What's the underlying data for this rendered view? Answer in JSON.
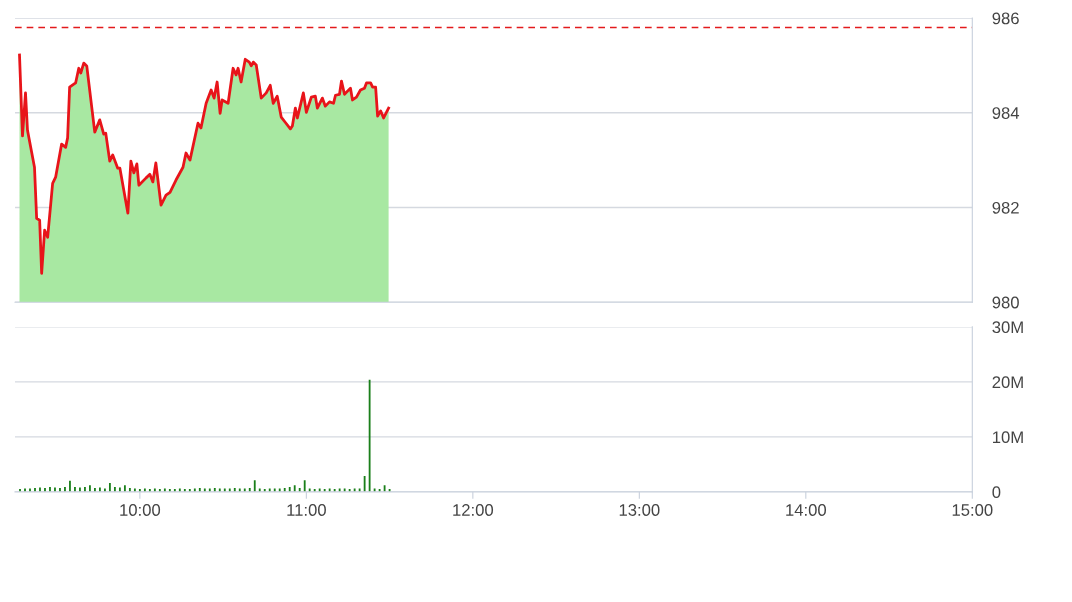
{
  "chart_data": [
    {
      "type": "area",
      "xlim": [
        9.25,
        15
      ],
      "ylim": [
        980,
        986
      ],
      "yticks": [
        980,
        982,
        984,
        986
      ],
      "tick_labels": "y",
      "grid": "y",
      "xticks": [
        {
          "value": 10,
          "label": null
        },
        {
          "value": 11,
          "label": null
        },
        {
          "value": 12,
          "label": null
        },
        {
          "value": 13,
          "label": null
        },
        {
          "value": 14,
          "label": null
        },
        {
          "value": 15,
          "label": null
        }
      ],
      "ref_lines": [
        {
          "axis": "y",
          "value": 985.8,
          "color": "#e31a1c",
          "line_style": "dashed"
        }
      ],
      "series": [
        {
          "type": "area",
          "color": "#a8e8a2",
          "x": [
            9.277,
            9.295,
            9.313,
            9.325,
            9.367,
            9.38,
            9.398,
            9.41,
            9.428,
            9.446,
            9.476,
            9.494,
            9.53,
            9.554,
            9.566,
            9.578,
            9.614,
            9.633,
            9.645,
            9.663,
            9.681,
            9.729,
            9.759,
            9.783,
            9.795,
            9.819,
            9.837,
            9.867,
            9.88,
            9.928,
            9.946,
            9.964,
            9.982,
            9.994,
            10.036,
            10.06,
            10.078,
            10.096,
            10.127,
            10.157,
            10.181,
            10.217,
            10.259,
            10.277,
            10.301,
            10.349,
            10.367,
            10.398,
            10.428,
            10.446,
            10.464,
            10.482,
            10.494,
            10.53,
            10.56,
            10.578,
            10.59,
            10.608,
            10.633,
            10.657,
            10.669,
            10.681,
            10.699,
            10.729,
            10.759,
            10.783,
            10.801,
            10.825,
            10.849,
            10.873,
            10.904,
            10.916,
            10.934,
            10.946,
            10.982,
            11.0,
            11.03,
            11.054,
            11.066,
            11.096,
            11.114,
            11.139,
            11.163,
            11.175,
            11.199,
            11.211,
            11.229,
            11.265,
            11.277,
            11.301,
            11.325,
            11.349,
            11.361,
            11.386,
            11.398,
            11.416,
            11.428,
            11.446,
            11.464,
            11.494
          ],
          "values": [
            985.22,
            983.51,
            984.42,
            983.63,
            982.85,
            981.77,
            981.73,
            980.61,
            981.52,
            981.37,
            982.51,
            982.64,
            983.34,
            983.27,
            983.47,
            984.54,
            984.63,
            984.94,
            984.84,
            985.05,
            984.99,
            983.59,
            983.85,
            983.55,
            983.57,
            982.98,
            983.11,
            982.83,
            982.83,
            981.88,
            982.98,
            982.73,
            982.92,
            982.47,
            982.62,
            982.7,
            982.54,
            982.94,
            982.05,
            982.26,
            982.32,
            982.58,
            982.85,
            983.15,
            983.0,
            983.78,
            983.68,
            984.2,
            984.48,
            984.31,
            984.65,
            983.99,
            984.27,
            984.2,
            984.94,
            984.8,
            984.94,
            984.65,
            985.13,
            985.07,
            984.99,
            985.07,
            985.01,
            984.31,
            984.42,
            984.58,
            984.2,
            984.35,
            983.91,
            983.8,
            983.66,
            983.72,
            984.1,
            983.89,
            984.42,
            984.01,
            984.33,
            984.35,
            984.1,
            984.31,
            984.14,
            984.23,
            984.2,
            984.37,
            984.39,
            984.67,
            984.39,
            984.52,
            984.27,
            984.33,
            984.48,
            984.52,
            984.63,
            984.63,
            984.54,
            984.54,
            983.93,
            984.04,
            983.89,
            984.1
          ]
        },
        {
          "type": "line",
          "color": "#e8141a",
          "x": [
            9.277,
            9.295,
            9.313,
            9.325,
            9.367,
            9.38,
            9.398,
            9.41,
            9.428,
            9.446,
            9.476,
            9.494,
            9.53,
            9.554,
            9.566,
            9.578,
            9.614,
            9.633,
            9.645,
            9.663,
            9.681,
            9.729,
            9.759,
            9.783,
            9.795,
            9.819,
            9.837,
            9.867,
            9.88,
            9.928,
            9.946,
            9.964,
            9.982,
            9.994,
            10.036,
            10.06,
            10.078,
            10.096,
            10.127,
            10.157,
            10.181,
            10.217,
            10.259,
            10.277,
            10.301,
            10.349,
            10.367,
            10.398,
            10.428,
            10.446,
            10.464,
            10.482,
            10.494,
            10.53,
            10.56,
            10.578,
            10.59,
            10.608,
            10.633,
            10.657,
            10.669,
            10.681,
            10.699,
            10.729,
            10.759,
            10.783,
            10.801,
            10.825,
            10.849,
            10.873,
            10.904,
            10.916,
            10.934,
            10.946,
            10.982,
            11.0,
            11.03,
            11.054,
            11.066,
            11.096,
            11.114,
            11.139,
            11.163,
            11.175,
            11.199,
            11.211,
            11.229,
            11.265,
            11.277,
            11.301,
            11.325,
            11.349,
            11.361,
            11.386,
            11.398,
            11.416,
            11.428,
            11.446,
            11.464,
            11.494
          ],
          "values": [
            985.22,
            983.51,
            984.42,
            983.63,
            982.85,
            981.77,
            981.73,
            980.61,
            981.52,
            981.37,
            982.51,
            982.64,
            983.34,
            983.27,
            983.47,
            984.54,
            984.63,
            984.94,
            984.84,
            985.05,
            984.99,
            983.59,
            983.85,
            983.55,
            983.57,
            982.98,
            983.11,
            982.83,
            982.83,
            981.88,
            982.98,
            982.73,
            982.92,
            982.47,
            982.62,
            982.7,
            982.54,
            982.94,
            982.05,
            982.26,
            982.32,
            982.58,
            982.85,
            983.15,
            983.0,
            983.78,
            983.68,
            984.2,
            984.48,
            984.31,
            984.65,
            983.99,
            984.27,
            984.2,
            984.94,
            984.8,
            984.94,
            984.65,
            985.13,
            985.07,
            984.99,
            985.07,
            985.01,
            984.31,
            984.42,
            984.58,
            984.2,
            984.35,
            983.91,
            983.8,
            983.66,
            983.72,
            984.1,
            983.89,
            984.42,
            984.01,
            984.33,
            984.35,
            984.1,
            984.31,
            984.14,
            984.23,
            984.2,
            984.37,
            984.39,
            984.67,
            984.39,
            984.52,
            984.27,
            984.33,
            984.48,
            984.52,
            984.63,
            984.63,
            984.54,
            984.54,
            983.93,
            984.04,
            983.89,
            984.1
          ]
        }
      ]
    },
    {
      "type": "bar",
      "xlim": [
        9.25,
        15
      ],
      "ylim": [
        0,
        30
      ],
      "grid": "y",
      "yticks": [
        {
          "value": 0,
          "label": "0"
        },
        {
          "value": 10,
          "label": "10M"
        },
        {
          "value": 20,
          "label": "20M"
        },
        {
          "value": 30,
          "label": "30M"
        }
      ],
      "xticks": [
        {
          "value": 10,
          "label": "10:00"
        },
        {
          "value": 11,
          "label": "11:00"
        },
        {
          "value": 12,
          "label": "12:00"
        },
        {
          "value": 13,
          "label": "13:00"
        },
        {
          "value": 14,
          "label": "14:00"
        },
        {
          "value": 15,
          "label": "15:00"
        }
      ],
      "series": [
        {
          "color": "#1a7f1a",
          "x": [
            9.28,
            9.31,
            9.34,
            9.37,
            9.4,
            9.43,
            9.46,
            9.49,
            9.52,
            9.55,
            9.58,
            9.61,
            9.64,
            9.67,
            9.7,
            9.73,
            9.76,
            9.79,
            9.82,
            9.85,
            9.88,
            9.91,
            9.94,
            9.97,
            10.0,
            10.03,
            10.06,
            10.09,
            10.12,
            10.15,
            10.18,
            10.21,
            10.24,
            10.27,
            10.3,
            10.33,
            10.36,
            10.39,
            10.42,
            10.45,
            10.48,
            10.51,
            10.54,
            10.57,
            10.6,
            10.63,
            10.66,
            10.69,
            10.72,
            10.75,
            10.78,
            10.81,
            10.84,
            10.87,
            10.9,
            10.93,
            10.96,
            10.99,
            11.02,
            11.05,
            11.08,
            11.11,
            11.14,
            11.17,
            11.2,
            11.23,
            11.26,
            11.29,
            11.32,
            11.35,
            11.38,
            11.41,
            11.44,
            11.47,
            11.5
          ],
          "values": [
            0.5,
            0.6,
            0.6,
            0.7,
            0.8,
            0.7,
            0.9,
            0.8,
            0.7,
            0.9,
            2.0,
            0.9,
            0.8,
            0.9,
            1.2,
            0.7,
            0.8,
            0.6,
            1.6,
            0.9,
            0.8,
            1.2,
            0.7,
            0.6,
            0.5,
            0.6,
            0.5,
            0.6,
            0.5,
            0.6,
            0.5,
            0.5,
            0.6,
            0.5,
            0.5,
            0.6,
            0.7,
            0.6,
            0.6,
            0.7,
            0.6,
            0.6,
            0.6,
            0.7,
            0.6,
            0.6,
            0.7,
            2.1,
            0.6,
            0.5,
            0.6,
            0.6,
            0.6,
            0.7,
            0.9,
            1.2,
            0.7,
            2.1,
            0.6,
            0.5,
            0.6,
            0.5,
            0.6,
            0.5,
            0.6,
            0.6,
            0.5,
            0.6,
            0.6,
            2.9,
            20.4,
            0.6,
            0.5,
            1.2,
            0.5
          ]
        }
      ]
    }
  ]
}
